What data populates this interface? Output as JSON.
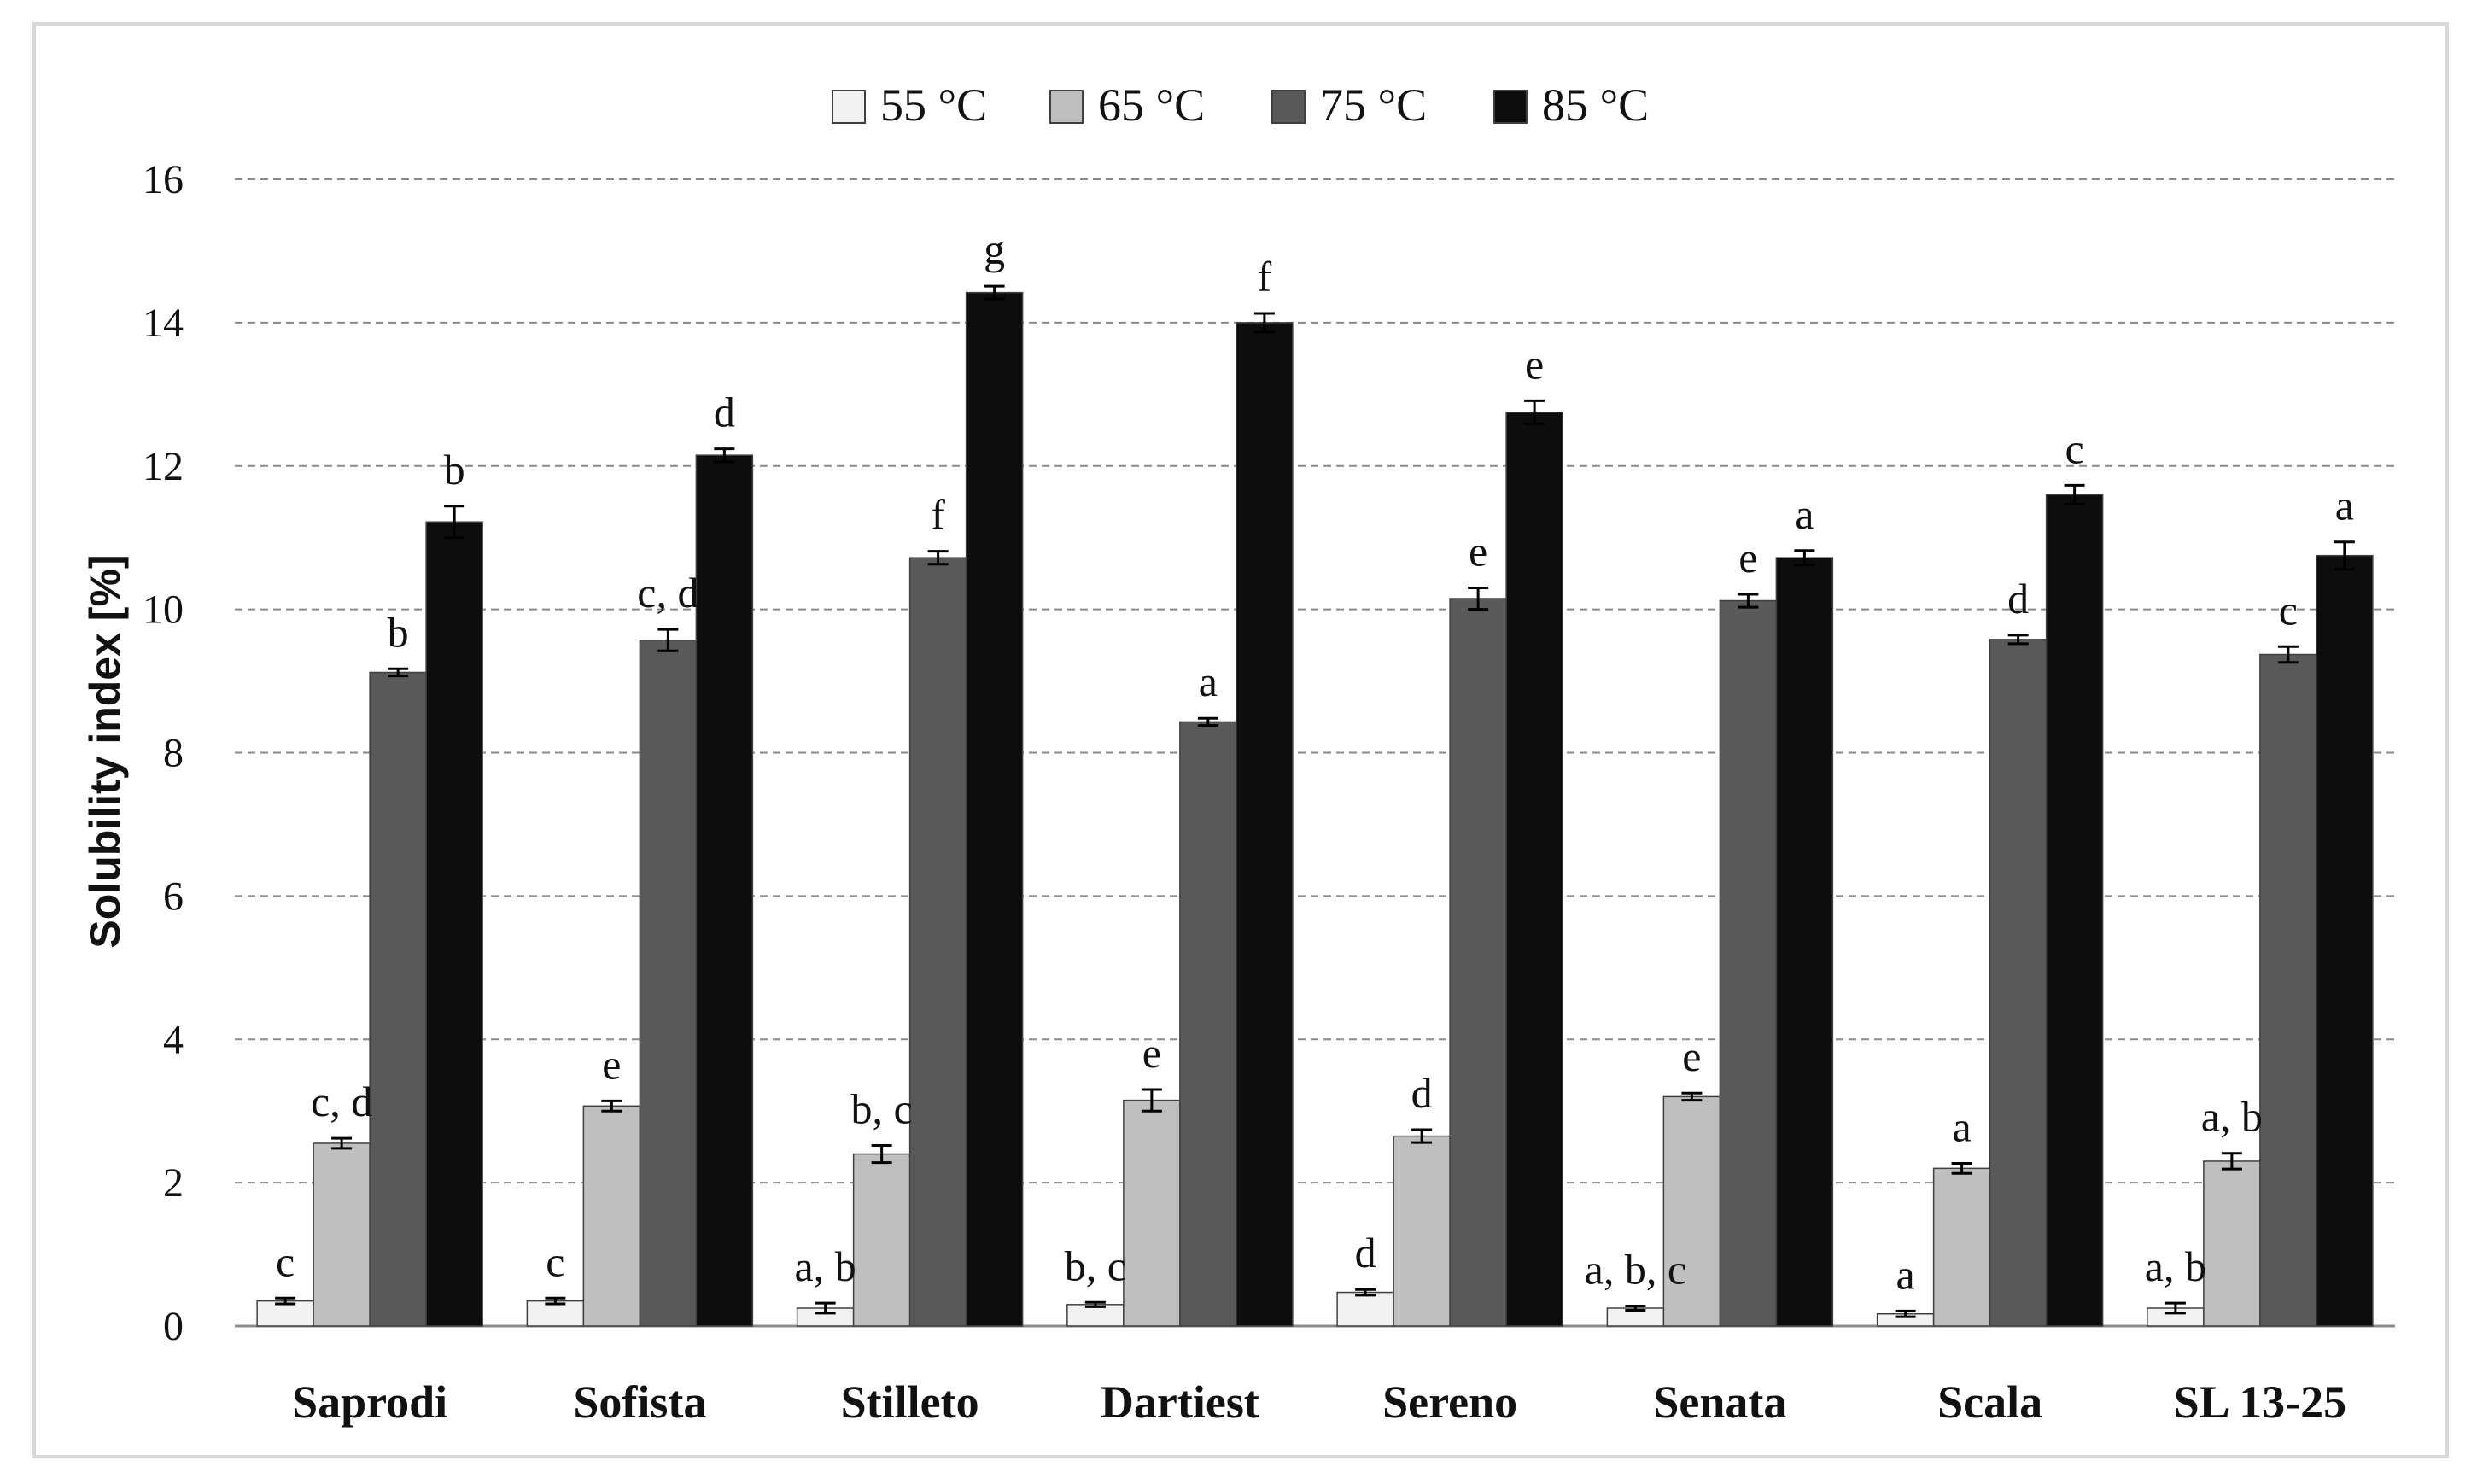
{
  "chart_data": {
    "type": "bar",
    "title": "",
    "xlabel": "",
    "ylabel": "Solubility index [%]",
    "ylim": [
      0,
      16
    ],
    "yticks": [
      0,
      2,
      4,
      6,
      8,
      10,
      12,
      14,
      16
    ],
    "grid": true,
    "legend_position": "top-center",
    "categories": [
      "Saprodi",
      "Sofista",
      "Stilleto",
      "Dartiest",
      "Sereno",
      "Senata",
      "Scala",
      "SL 13-25"
    ],
    "series": [
      {
        "name": "55 °C",
        "color": "#f2f2f2",
        "values": [
          0.35,
          0.35,
          0.25,
          0.3,
          0.47,
          0.25,
          0.17,
          0.25
        ],
        "errors": [
          0.04,
          0.04,
          0.07,
          0.03,
          0.04,
          0.03,
          0.04,
          0.07
        ],
        "letters": [
          "c",
          "c",
          "a, b",
          "b, c",
          "d",
          "a, b, c",
          "a",
          "a, b"
        ]
      },
      {
        "name": "65 °C",
        "color": "#bfbfbf",
        "values": [
          2.55,
          3.07,
          2.4,
          3.15,
          2.65,
          3.2,
          2.2,
          2.3
        ],
        "errors": [
          0.07,
          0.07,
          0.12,
          0.15,
          0.09,
          0.05,
          0.07,
          0.11
        ],
        "letters": [
          "c, d",
          "e",
          "b, c",
          "e",
          "d",
          "e",
          "a",
          "a, b"
        ]
      },
      {
        "name": "75 °C",
        "color": "#595959",
        "values": [
          9.12,
          9.57,
          10.72,
          8.43,
          10.15,
          10.12,
          9.58,
          9.37
        ],
        "errors": [
          0.05,
          0.15,
          0.09,
          0.05,
          0.15,
          0.09,
          0.06,
          0.11
        ],
        "letters": [
          "b",
          "c, d",
          "f",
          "a",
          "e",
          "e",
          "d",
          "c"
        ]
      },
      {
        "name": "85 °C",
        "color": "#0d0d0d",
        "values": [
          11.22,
          12.15,
          14.42,
          14.0,
          12.75,
          10.72,
          11.6,
          10.75
        ],
        "errors": [
          0.22,
          0.09,
          0.09,
          0.13,
          0.16,
          0.1,
          0.13,
          0.19
        ],
        "letters": [
          "b",
          "d",
          "g",
          "f",
          "e",
          "a",
          "c",
          "a"
        ]
      }
    ]
  }
}
